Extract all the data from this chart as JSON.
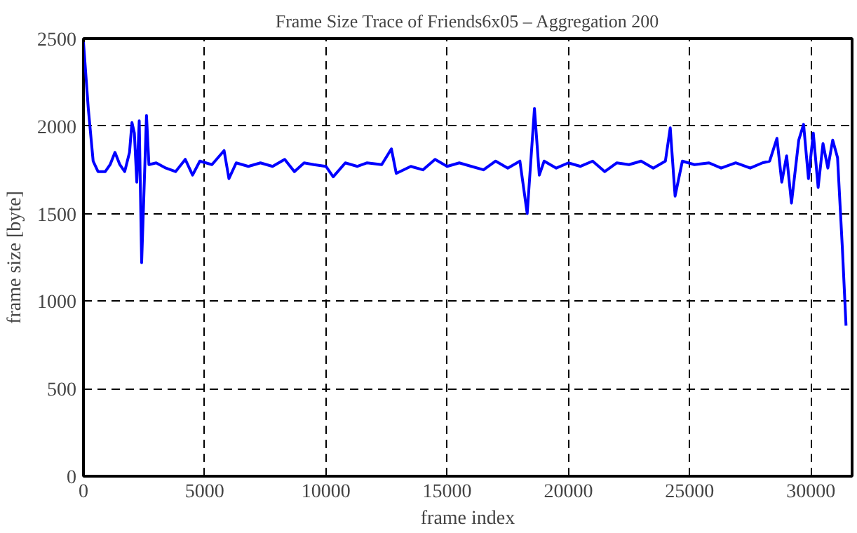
{
  "chart_data": {
    "type": "line",
    "title": "Frame Size Trace of Friends6x05 – Aggregation 200",
    "xlabel": "frame index",
    "ylabel": "frame size [byte]",
    "x": [
      0,
      200,
      400,
      600,
      900,
      1100,
      1300,
      1500,
      1700,
      1900,
      2000,
      2100,
      2200,
      2300,
      2400,
      2500,
      2600,
      2700,
      3000,
      3400,
      3800,
      4200,
      4500,
      4800,
      5300,
      5800,
      6000,
      6300,
      6800,
      7300,
      7800,
      8300,
      8700,
      9100,
      9500,
      10000,
      10300,
      10800,
      11300,
      11700,
      12300,
      12700,
      12900,
      13500,
      14000,
      14500,
      15000,
      15500,
      16000,
      16500,
      17000,
      17500,
      18000,
      18300,
      18600,
      18800,
      19000,
      19500,
      20000,
      20500,
      21000,
      21500,
      22000,
      22500,
      23000,
      23500,
      24000,
      24200,
      24400,
      24700,
      25200,
      25800,
      26300,
      26900,
      27500,
      28000,
      28300,
      28600,
      28800,
      29000,
      29200,
      29500,
      29700,
      29900,
      30100,
      30300,
      30500,
      30700,
      30900,
      31100,
      31300,
      31450
    ],
    "series": [
      {
        "color": "#0000ff",
        "values": [
          2480,
          2100,
          1800,
          1740,
          1740,
          1780,
          1850,
          1780,
          1740,
          1850,
          2020,
          1960,
          1680,
          2030,
          1220,
          1640,
          2060,
          1780,
          1790,
          1760,
          1740,
          1810,
          1720,
          1800,
          1780,
          1860,
          1700,
          1790,
          1770,
          1790,
          1770,
          1810,
          1740,
          1790,
          1780,
          1770,
          1710,
          1790,
          1770,
          1790,
          1780,
          1870,
          1730,
          1770,
          1750,
          1810,
          1770,
          1790,
          1770,
          1750,
          1800,
          1760,
          1800,
          1500,
          2100,
          1720,
          1800,
          1760,
          1790,
          1770,
          1800,
          1740,
          1790,
          1780,
          1800,
          1760,
          1800,
          1990,
          1600,
          1800,
          1780,
          1790,
          1760,
          1790,
          1760,
          1790,
          1800,
          1930,
          1680,
          1830,
          1560,
          1920,
          2010,
          1700,
          1960,
          1650,
          1900,
          1760,
          1920,
          1820,
          1300,
          860
        ]
      }
    ],
    "xlim": [
      0,
      31700
    ],
    "ylim": [
      0,
      2500
    ],
    "xticks": [
      0,
      5000,
      10000,
      15000,
      20000,
      25000,
      30000
    ],
    "yticks": [
      0,
      500,
      1000,
      1500,
      2000,
      2500
    ],
    "grid": true,
    "marker": "none",
    "line_style": "solid"
  }
}
